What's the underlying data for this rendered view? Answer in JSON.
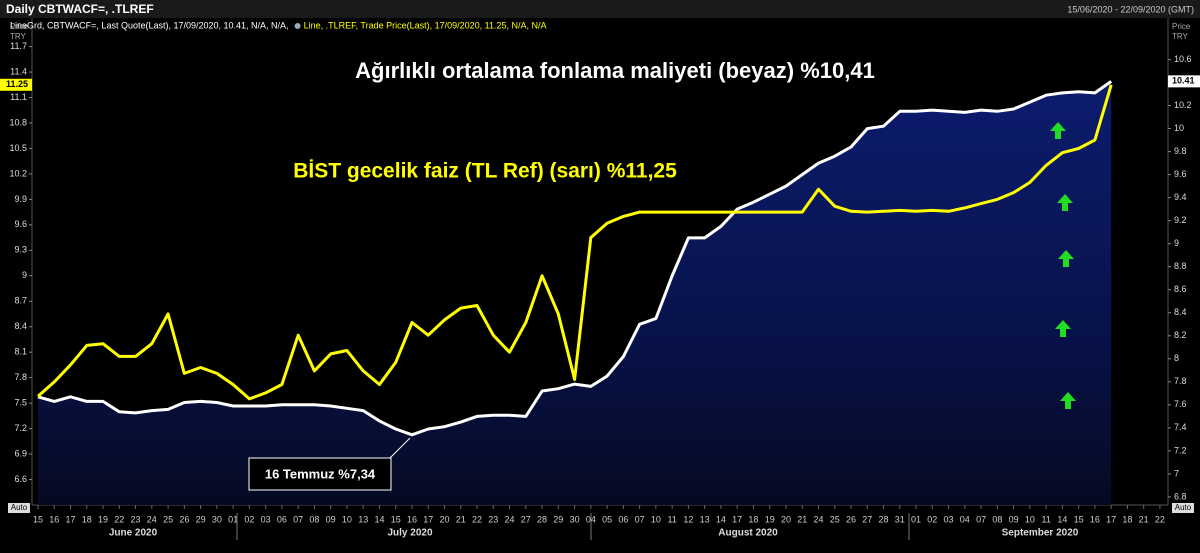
{
  "chart_data": {
    "type": "line",
    "title": "Daily CBTWACF=, .TLREF",
    "date_range": "15/06/2020 - 22/09/2020 (GMT)",
    "axis_label": [
      "Price",
      "TRY"
    ],
    "auto_label": "Auto",
    "annotations": [
      "Ağırlıklı ortalama fonlama maliyeti (beyaz) %10,41",
      "BİST gecelik faiz (TL Ref) (sarı) %11,25",
      "16 Temmuz %7,34"
    ],
    "categories": [
      "15",
      "16",
      "17",
      "18",
      "19",
      "22",
      "23",
      "24",
      "25",
      "26",
      "29",
      "30",
      "01",
      "02",
      "03",
      "06",
      "07",
      "08",
      "09",
      "10",
      "13",
      "14",
      "15",
      "16",
      "17",
      "20",
      "21",
      "22",
      "23",
      "24",
      "27",
      "28",
      "29",
      "30",
      "04",
      "05",
      "06",
      "07",
      "10",
      "11",
      "12",
      "13",
      "14",
      "17",
      "18",
      "19",
      "20",
      "21",
      "24",
      "25",
      "26",
      "27",
      "28",
      "31",
      "01",
      "02",
      "03",
      "04",
      "07",
      "08",
      "09",
      "10",
      "11",
      "14",
      "15",
      "16",
      "17",
      "18",
      "21",
      "22"
    ],
    "x_groups": [
      "June 2020",
      "July 2020",
      "August 2020",
      "September 2020"
    ],
    "series": [
      {
        "name": "LineGrd, CBTWACF=, Last Quote(Last), 17/09/2020, 10.41, N/A, N/A,",
        "color": "#ffffff",
        "axis": "y2",
        "area": true,
        "values": [
          7.67,
          7.63,
          7.67,
          7.63,
          7.63,
          7.54,
          7.53,
          7.55,
          7.56,
          7.62,
          7.63,
          7.62,
          7.59,
          7.59,
          7.59,
          7.6,
          7.6,
          7.6,
          7.59,
          7.57,
          7.55,
          7.46,
          7.39,
          7.34,
          7.39,
          7.41,
          7.45,
          7.5,
          7.51,
          7.51,
          7.5,
          7.72,
          7.74,
          7.78,
          7.76,
          7.85,
          8.02,
          8.3,
          8.35,
          8.72,
          9.05,
          9.05,
          9.15,
          9.3,
          9.36,
          9.43,
          9.5,
          9.6,
          9.7,
          9.76,
          9.84,
          10.0,
          10.02,
          10.15,
          10.15,
          10.16,
          10.15,
          10.14,
          10.16,
          10.15,
          10.17,
          10.23,
          10.29,
          10.31,
          10.32,
          10.31,
          10.41,
          null,
          null,
          null
        ]
      },
      {
        "name": "Line, .TLREF, Trade Price(Last), 17/09/2020, 11.25, N/A, N/A",
        "color": "#ffff00",
        "values": [
          7.58,
          7.75,
          7.95,
          8.18,
          8.2,
          8.05,
          8.05,
          8.2,
          8.55,
          7.85,
          7.92,
          7.85,
          7.72,
          7.55,
          7.62,
          7.72,
          8.3,
          7.88,
          8.08,
          8.12,
          7.88,
          7.72,
          7.98,
          8.45,
          8.3,
          8.48,
          8.62,
          8.65,
          8.3,
          8.1,
          8.45,
          9.0,
          8.55,
          7.78,
          9.45,
          9.62,
          9.7,
          9.75,
          9.75,
          9.75,
          9.75,
          9.75,
          9.75,
          9.75,
          9.75,
          9.75,
          9.75,
          9.75,
          10.02,
          9.82,
          9.76,
          9.75,
          9.76,
          9.77,
          9.76,
          9.77,
          9.76,
          9.8,
          9.85,
          9.9,
          9.98,
          10.1,
          10.3,
          10.45,
          10.5,
          10.6,
          11.25,
          null,
          null,
          null
        ]
      }
    ],
    "ylim": [
      6.3,
      11.86
    ],
    "yticks": [
      6.6,
      6.9,
      7.2,
      7.5,
      7.8,
      8.1,
      8.4,
      8.7,
      9,
      9.3,
      9.6,
      9.9,
      10.2,
      10.5,
      10.8,
      11.1,
      11.4,
      11.7
    ],
    "y2lim": [
      6.73,
      10.83
    ],
    "y2ticks": [
      6.8,
      7,
      7.2,
      7.4,
      7.6,
      7.8,
      8,
      8.2,
      8.4,
      8.6,
      8.8,
      9,
      9.2,
      9.4,
      9.6,
      9.8,
      10,
      10.2,
      10.6
    ]
  }
}
